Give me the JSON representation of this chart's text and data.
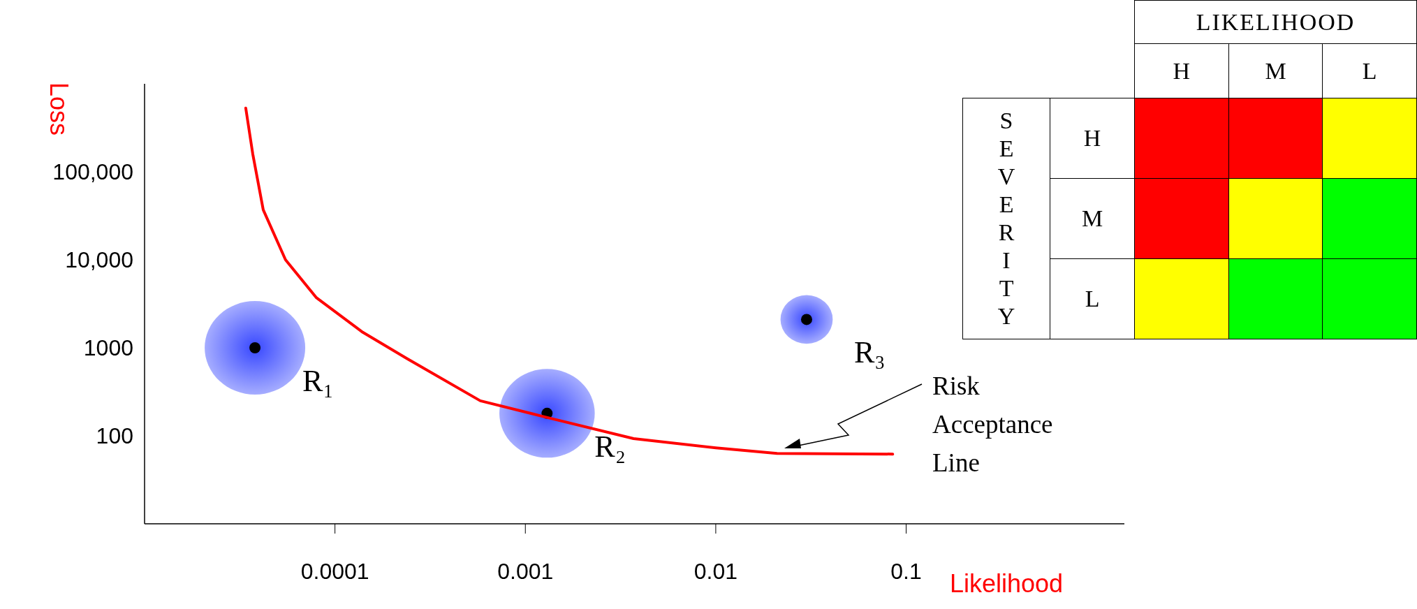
{
  "chart_data": [
    {
      "type": "scatter",
      "log": "xy",
      "xlabel": "Likelihood",
      "ylabel": "Loss",
      "xlim": [
        1e-05,
        1.4
      ],
      "ylim": [
        10,
        1000000
      ],
      "xticks": [
        0.0001,
        0.001,
        0.01,
        0.1
      ],
      "yticks": [
        100,
        1000,
        {
          "value": 10000,
          "label": "10,000"
        },
        {
          "value": 100000,
          "label": "100,000"
        }
      ],
      "series": [
        {
          "type": "bubble",
          "color": "#3848ff",
          "x": [
            3.8e-05,
            0.0013,
            0.03
          ],
          "values": [
            1000,
            180,
            2100
          ],
          "sizes": [
            1,
            0.9,
            0.27
          ]
        },
        {
          "type": "scatter",
          "color": "#000000",
          "x": [
            3.8e-05,
            0.0013,
            0.03
          ],
          "values": [
            1000,
            180,
            2100
          ]
        },
        {
          "type": "line",
          "color": "#ff0000",
          "x": [
            3.4e-05,
            3.7e-05,
            4.2e-05,
            5.5e-05,
            8e-05,
            0.00014,
            0.00024,
            0.00058,
            0.00125,
            0.0037,
            0.01,
            0.021,
            0.085
          ],
          "values": [
            530000,
            160000,
            37000,
            10000,
            3700,
            1500,
            750,
            250,
            165,
            93,
            73,
            63,
            62
          ]
        }
      ],
      "annotations": [
        {
          "text": "R₁",
          "x": 3.8e-05,
          "y": 1000
        },
        {
          "text": "R₂",
          "x": 0.0013,
          "y": 180
        },
        {
          "text": "R₃",
          "x": 0.03,
          "y": 2100
        },
        "Risk Acceptance Line"
      ]
    },
    {
      "type": "other",
      "title": "LIKELIHOOD",
      "ylabel": "SEVERITY",
      "categories": [
        "H",
        "M",
        "L"
      ],
      "y_categories": [
        "H",
        "M",
        "L"
      ],
      "colors": [
        [
          "#ff0000",
          "#ff0000",
          "#ffff00"
        ],
        [
          "#ff0000",
          "#ffff00",
          "#00ff00"
        ],
        [
          "#ffff00",
          "#00ff00",
          "#00ff00"
        ]
      ]
    }
  ]
}
